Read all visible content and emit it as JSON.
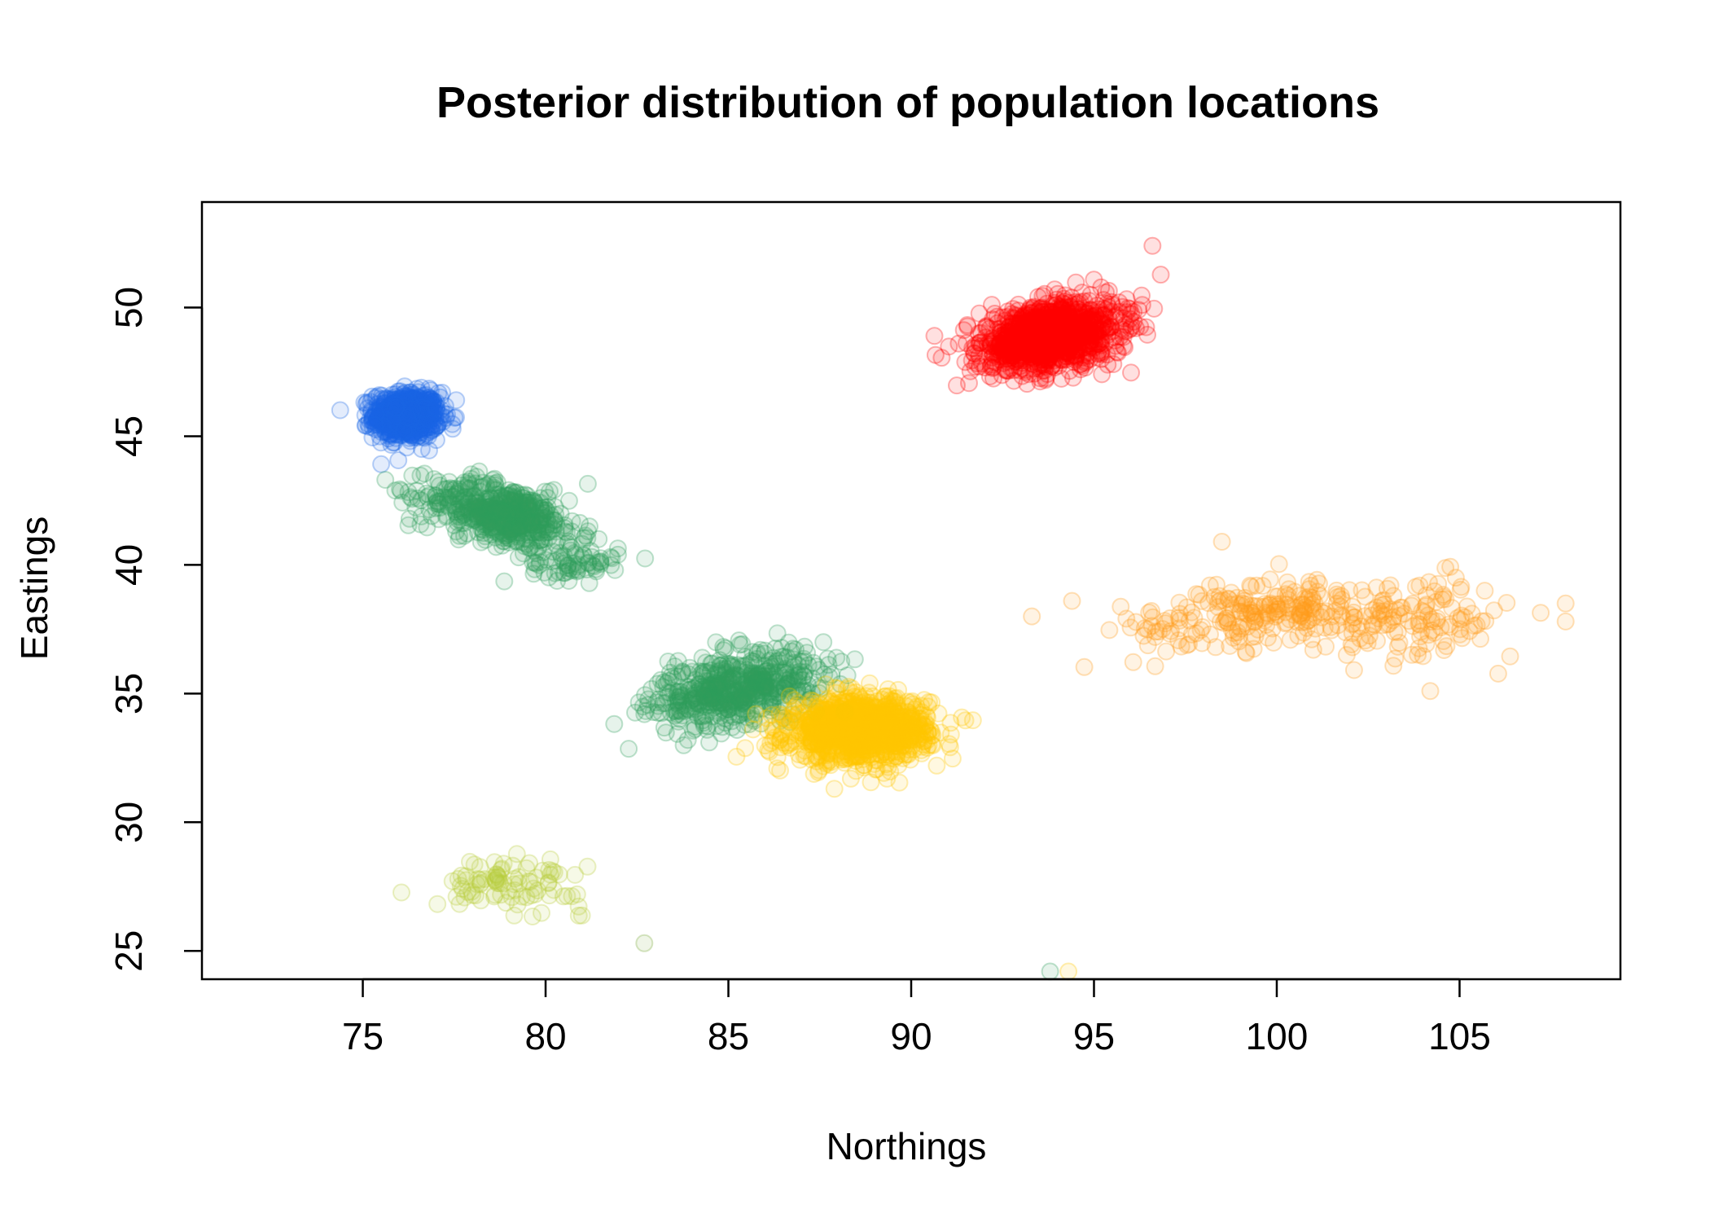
{
  "chart_data": {
    "type": "scatter",
    "title": "Posterior distribution of population locations",
    "xlabel": "Northings",
    "ylabel": "Eastings",
    "xlim": [
      70.6,
      109.4
    ],
    "ylim": [
      23.9,
      54.1
    ],
    "xticks": [
      75,
      80,
      85,
      90,
      95,
      100,
      105
    ],
    "yticks": [
      25,
      30,
      35,
      40,
      45,
      50
    ],
    "grid": false,
    "legend": "none",
    "point_style": "semi-transparent open circles",
    "series": [
      {
        "color": "#1a66e6",
        "clusters": [
          {
            "cx": 76.2,
            "cy": 45.8,
            "sx": 0.45,
            "sy": 0.45,
            "n": 700,
            "rot": 0
          }
        ]
      },
      {
        "color": "#2e9e5e",
        "clusters": [
          {
            "cx": 78.8,
            "cy": 42.0,
            "sx": 1.1,
            "sy": 0.55,
            "n": 520,
            "rot": -0.35
          },
          {
            "cx": 80.8,
            "cy": 40.1,
            "sx": 0.6,
            "sy": 0.35,
            "n": 70,
            "rot": 0
          },
          {
            "cx": 85.2,
            "cy": 35.2,
            "sx": 1.2,
            "sy": 0.65,
            "n": 560,
            "rot": 0.35
          }
        ]
      },
      {
        "color": "#ff0000",
        "clusters": [
          {
            "cx": 93.8,
            "cy": 48.9,
            "sx": 1.0,
            "sy": 0.6,
            "n": 1100,
            "rot": 0.32
          }
        ]
      },
      {
        "color": "#ffc800",
        "clusters": [
          {
            "cx": 88.6,
            "cy": 33.6,
            "sx": 0.95,
            "sy": 0.6,
            "n": 1100,
            "rot": 0.05
          }
        ]
      },
      {
        "color": "#ff9a1a",
        "clusters": [
          {
            "cx": 98.5,
            "cy": 37.7,
            "sx": 1.5,
            "sy": 0.65,
            "n": 110,
            "rot": 0.1
          },
          {
            "cx": 100.2,
            "cy": 38.5,
            "sx": 1.0,
            "sy": 0.5,
            "n": 90,
            "rot": 0
          },
          {
            "cx": 103.5,
            "cy": 38.0,
            "sx": 1.6,
            "sy": 0.75,
            "n": 150,
            "rot": 0
          }
        ]
      },
      {
        "color": "#b8cc3a",
        "clusters": [
          {
            "cx": 79.0,
            "cy": 27.6,
            "sx": 1.0,
            "sy": 0.45,
            "n": 90,
            "rot": 0
          }
        ]
      }
    ],
    "extra_points": [
      {
        "x": 82.7,
        "y": 25.3,
        "color": "#7aaa3a"
      },
      {
        "x": 75.9,
        "y": 46.1,
        "color": "#1a66e6"
      },
      {
        "x": 77.0,
        "y": 42.2,
        "color": "#2e9e5e"
      },
      {
        "x": 81.9,
        "y": 39.8,
        "color": "#2e9e5e"
      },
      {
        "x": 82.7,
        "y": 34.2,
        "color": "#2e9e5e"
      },
      {
        "x": 87.6,
        "y": 37.0,
        "color": "#2e9e5e"
      },
      {
        "x": 96.6,
        "y": 52.4,
        "color": "#ff0000"
      },
      {
        "x": 91.3,
        "y": 48.6,
        "color": "#ff0000"
      },
      {
        "x": 87.9,
        "y": 31.3,
        "color": "#ffc800"
      },
      {
        "x": 90.7,
        "y": 32.2,
        "color": "#ffc800"
      },
      {
        "x": 93.3,
        "y": 38.0,
        "color": "#ff9a1a"
      },
      {
        "x": 94.4,
        "y": 38.6,
        "color": "#ff9a1a"
      },
      {
        "x": 98.5,
        "y": 40.9,
        "color": "#ff9a1a"
      },
      {
        "x": 107.9,
        "y": 38.5,
        "color": "#ff9a1a"
      },
      {
        "x": 107.9,
        "y": 37.8,
        "color": "#ff9a1a"
      },
      {
        "x": 104.2,
        "y": 35.1,
        "color": "#ff9a1a"
      },
      {
        "x": 93.8,
        "y": 24.2,
        "color": "#2e9e5e"
      },
      {
        "x": 94.3,
        "y": 24.2,
        "color": "#ffc800"
      }
    ]
  }
}
